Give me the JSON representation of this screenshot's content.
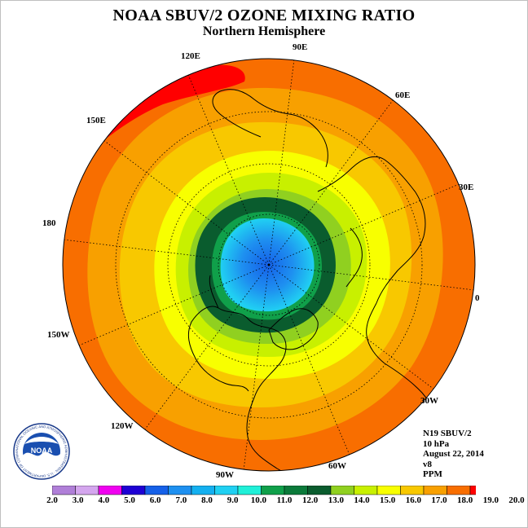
{
  "title": "NOAA SBUV/2 OZONE MIXING RATIO",
  "subtitle": "Northern Hemisphere",
  "longitude_labels": {
    "lon_90e": "90E",
    "lon_60e": "60E",
    "lon_30e": "30E",
    "lon_0": "0",
    "lon_30w": "30W",
    "lon_60w": "60W",
    "lon_90w": "90W",
    "lon_120w": "120W",
    "lon_150w": "150W",
    "lon_180": "180",
    "lon_150e": "150E",
    "lon_120e": "120E"
  },
  "info": {
    "instrument": "N19 SBUV/2",
    "level": "10 hPa",
    "date": "August 22, 2014",
    "version": "v8",
    "units": "PPM"
  },
  "colorbar": {
    "labels": [
      "2.0",
      "3.0",
      "4.0",
      "5.0",
      "6.0",
      "7.0",
      "8.0",
      "9.0",
      "10.0",
      "11.0",
      "12.0",
      "13.0",
      "14.0",
      "15.0",
      "16.0",
      "17.0",
      "18.0",
      "19.0",
      "20.0"
    ],
    "colors": [
      "#b07fd8",
      "#d4a6ee",
      "#f000f0",
      "#1e00d4",
      "#1560e8",
      "#1e90f0",
      "#14b0f0",
      "#20d0f2",
      "#20f0d8",
      "#10a04a",
      "#0b7a3a",
      "#0a5c2e",
      "#90d020",
      "#c8f000",
      "#f8ff00",
      "#f8c800",
      "#f8a000",
      "#f86e00",
      "#ff0000",
      "#8a5a3a"
    ]
  },
  "colors": {
    "outer_orange": "#f86e00",
    "ring_orange": "#f8a000",
    "ring_gold": "#f8c800",
    "ring_yellow": "#f8ff00",
    "ring_lime": "#c8f000",
    "ring_green": "#90d020",
    "ring_dark_green": "#0a5c2e",
    "ring_mid_green": "#10a04a",
    "core_cyan": "#20d0f2",
    "core_blue": "#1e90f0",
    "core_deep_blue": "#1560e8",
    "max_red": "#ff0000"
  },
  "logo": {
    "text": "NOAA",
    "ring_text": "NATIONAL OCEANIC AND ATMOSPHERIC ADMINISTRATION · U.S. DEPARTMENT OF COMMERCE"
  }
}
